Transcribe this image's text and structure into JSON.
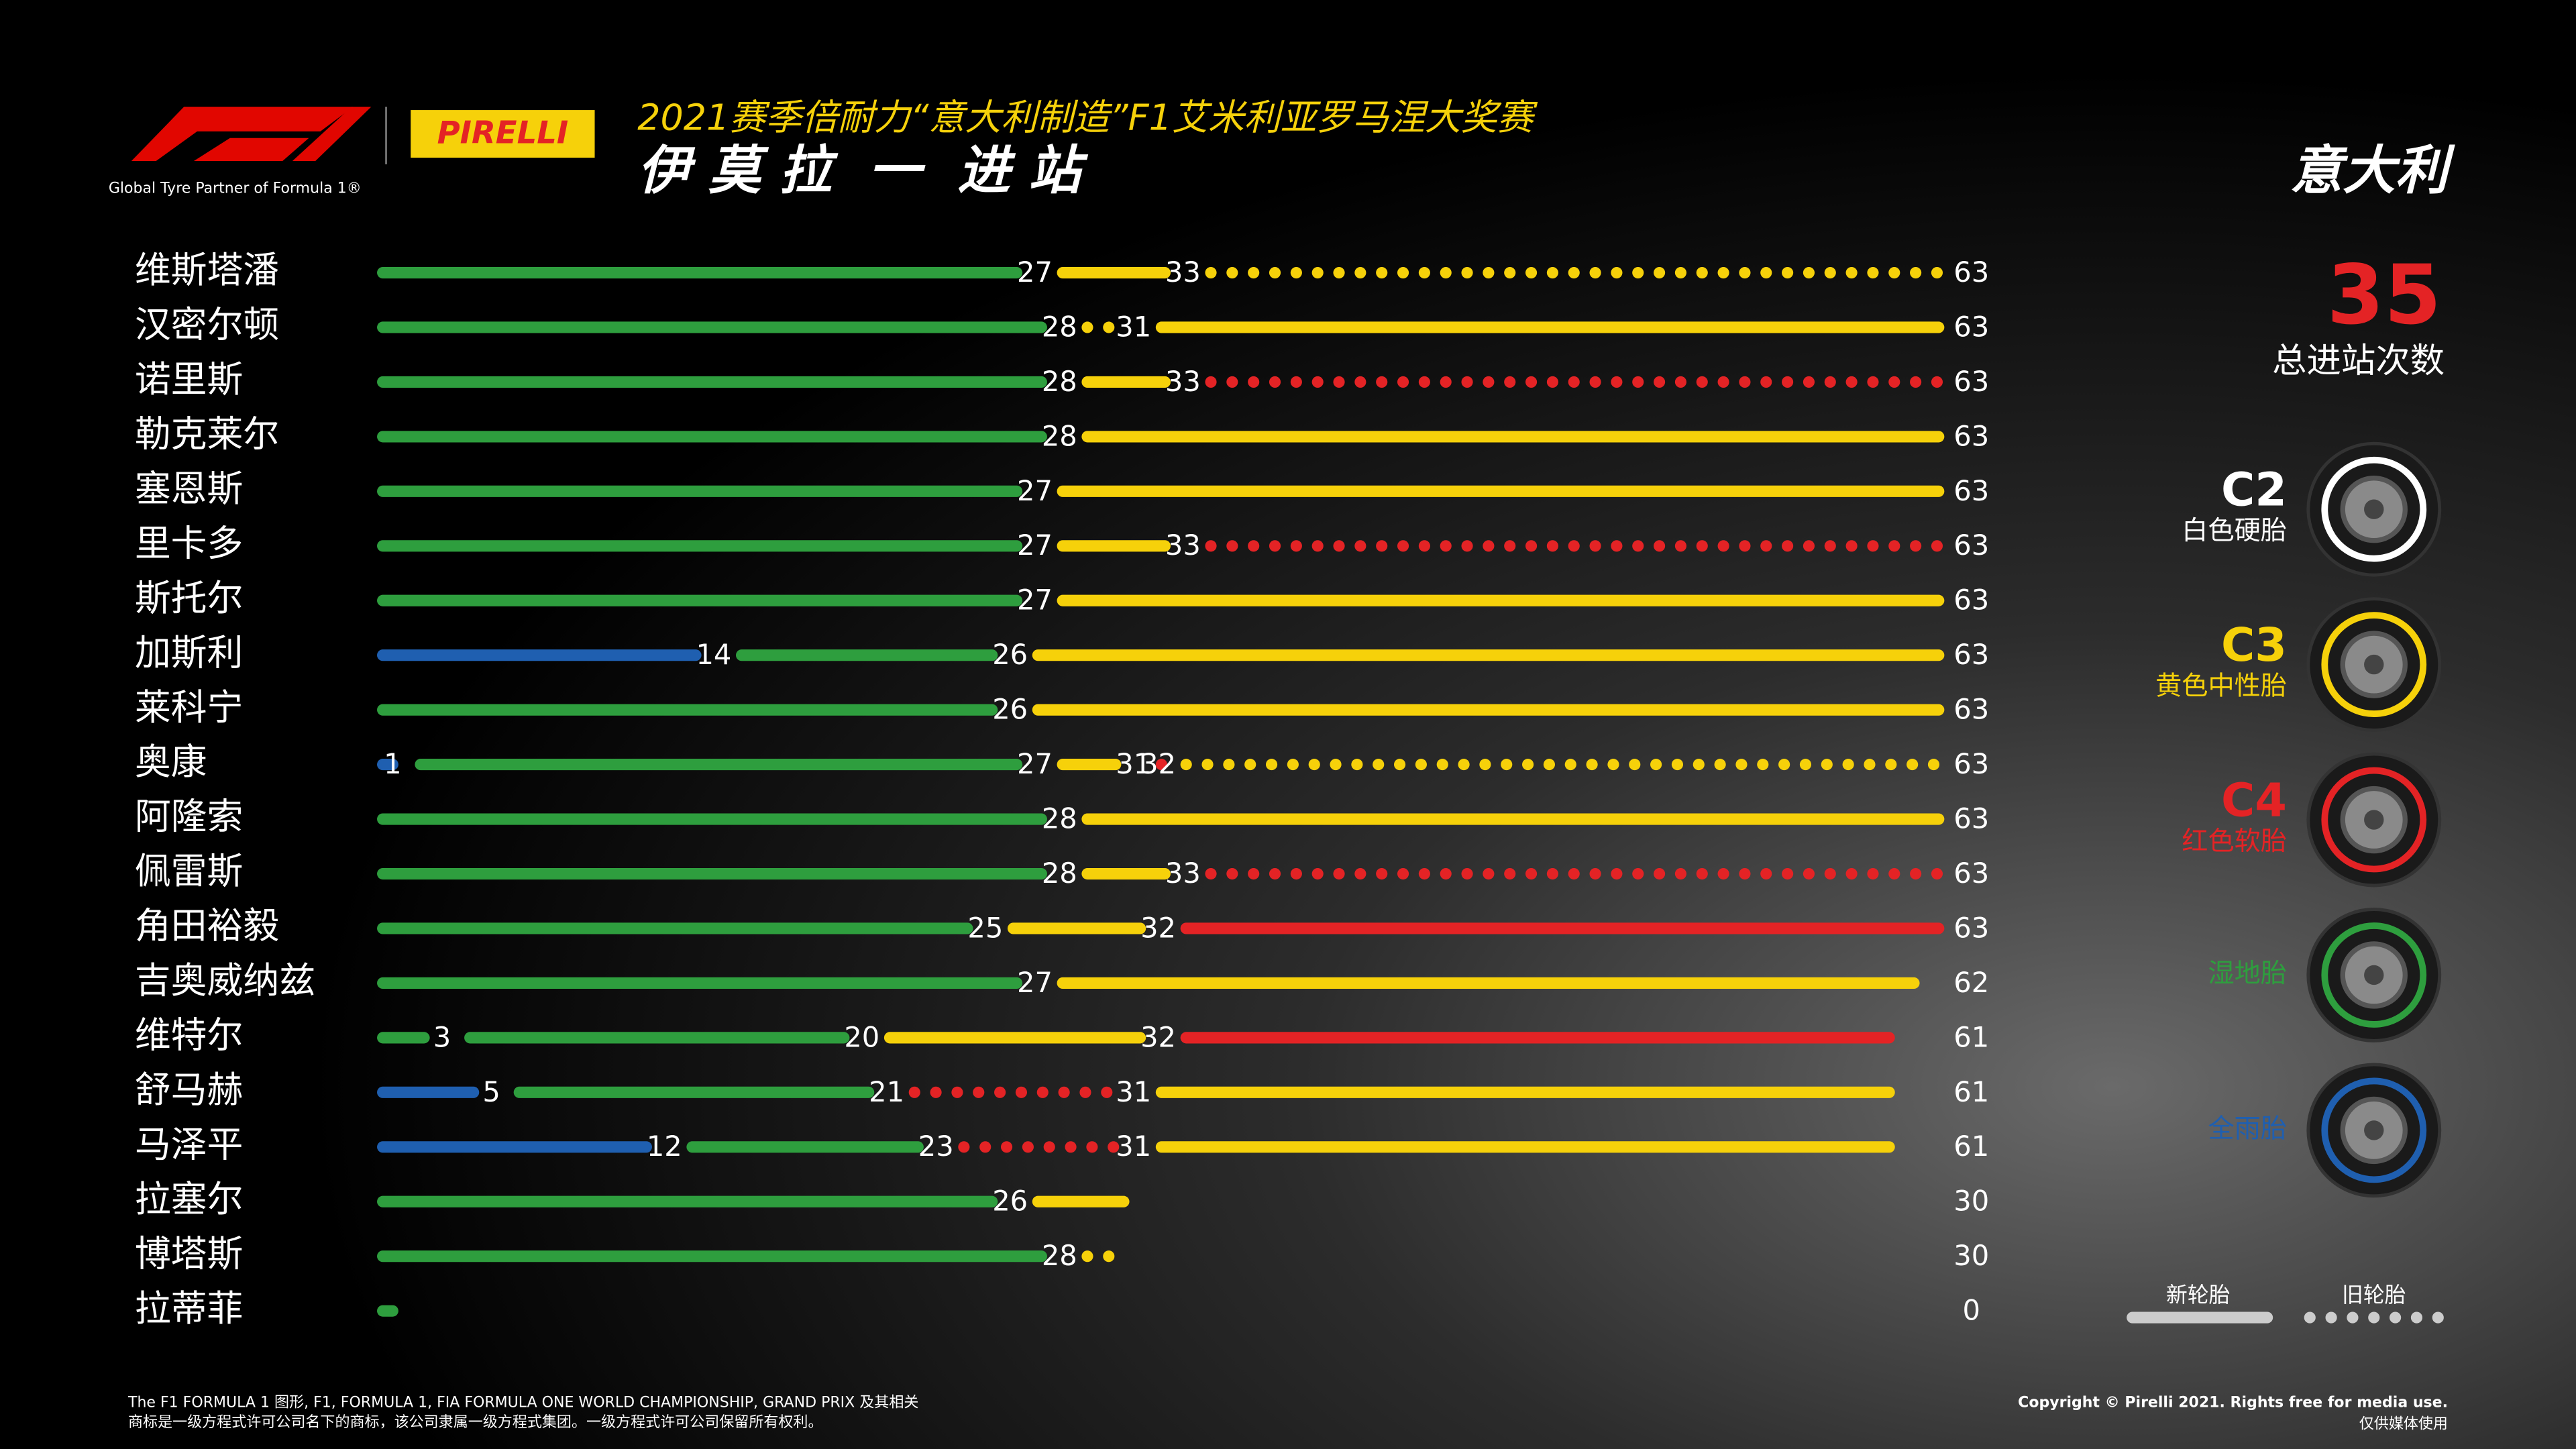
{
  "header": {
    "title": "2021赛季倍耐力“意大利制造”F1艾米利亚罗马涅大奖赛",
    "subtitle": "伊 莫 拉  一  进 站",
    "partner": "Global Tyre Partner of Formula 1®",
    "brand": "PIRELLI"
  },
  "chart_data": {
    "type": "strategy",
    "country": "意大利",
    "total_stops": 35,
    "total_stops_label": "总进站次数",
    "xlim": [
      0,
      63
    ],
    "compounds": [
      {
        "code": "C2",
        "name": "白色硬胎",
        "color": "#ffffff"
      },
      {
        "code": "C3",
        "name": "黄色中性胎",
        "color": "#f6d10a"
      },
      {
        "code": "C4",
        "name": "红色软胎",
        "color": "#e42325"
      },
      {
        "name": "湿地胎",
        "color": "#2e9e3e"
      },
      {
        "name": "全雨胎",
        "color": "#1f5fb0"
      }
    ],
    "legend_new": "新轮胎",
    "legend_used": "旧轮胎",
    "drivers": [
      {
        "name": "维斯塔潘",
        "stints": [
          {
            "compound": 3,
            "end": 27,
            "new": true
          },
          {
            "compound": 1,
            "end": 33,
            "new": true
          },
          {
            "compound": 1,
            "end": 63,
            "new": false
          }
        ]
      },
      {
        "name": "汉密尔顿",
        "stints": [
          {
            "compound": 3,
            "end": 28,
            "new": true
          },
          {
            "compound": 1,
            "end": 31,
            "new": false
          },
          {
            "compound": 1,
            "end": 63,
            "new": true
          }
        ]
      },
      {
        "name": "诺里斯",
        "stints": [
          {
            "compound": 3,
            "end": 28,
            "new": true
          },
          {
            "compound": 1,
            "end": 33,
            "new": true
          },
          {
            "compound": 2,
            "end": 63,
            "new": false
          }
        ]
      },
      {
        "name": "勒克莱尔",
        "stints": [
          {
            "compound": 3,
            "end": 28,
            "new": true
          },
          {
            "compound": 1,
            "end": 63,
            "new": true
          }
        ]
      },
      {
        "name": "塞恩斯",
        "stints": [
          {
            "compound": 3,
            "end": 27,
            "new": true
          },
          {
            "compound": 1,
            "end": 63,
            "new": true
          }
        ]
      },
      {
        "name": "里卡多",
        "stints": [
          {
            "compound": 3,
            "end": 27,
            "new": true
          },
          {
            "compound": 1,
            "end": 33,
            "new": true
          },
          {
            "compound": 2,
            "end": 63,
            "new": false
          }
        ]
      },
      {
        "name": "斯托尔",
        "stints": [
          {
            "compound": 3,
            "end": 27,
            "new": true
          },
          {
            "compound": 1,
            "end": 63,
            "new": true
          }
        ]
      },
      {
        "name": "加斯利",
        "stints": [
          {
            "compound": 4,
            "end": 14,
            "new": true
          },
          {
            "compound": 3,
            "end": 26,
            "new": true
          },
          {
            "compound": 1,
            "end": 63,
            "new": true
          }
        ]
      },
      {
        "name": "莱科宁",
        "stints": [
          {
            "compound": 3,
            "end": 26,
            "new": true
          },
          {
            "compound": 1,
            "end": 63,
            "new": true
          }
        ]
      },
      {
        "name": "奥康",
        "stints": [
          {
            "compound": 4,
            "end": 1,
            "new": true
          },
          {
            "compound": 3,
            "end": 27,
            "new": true
          },
          {
            "compound": 1,
            "end": 31,
            "new": true
          },
          {
            "compound": 2,
            "end": 32,
            "new": false
          },
          {
            "compound": 1,
            "end": 63,
            "new": false
          }
        ]
      },
      {
        "name": "阿隆索",
        "stints": [
          {
            "compound": 3,
            "end": 28,
            "new": true
          },
          {
            "compound": 1,
            "end": 63,
            "new": true
          }
        ]
      },
      {
        "name": "佩雷斯",
        "stints": [
          {
            "compound": 3,
            "end": 28,
            "new": true
          },
          {
            "compound": 1,
            "end": 33,
            "new": true
          },
          {
            "compound": 2,
            "end": 63,
            "new": false
          }
        ]
      },
      {
        "name": "角田裕毅",
        "stints": [
          {
            "compound": 3,
            "end": 25,
            "new": true
          },
          {
            "compound": 1,
            "end": 32,
            "new": true
          },
          {
            "compound": 2,
            "end": 63,
            "new": true
          }
        ]
      },
      {
        "name": "吉奥威纳兹",
        "stints": [
          {
            "compound": 3,
            "end": 27,
            "new": true
          },
          {
            "compound": 1,
            "end": 62,
            "new": true
          }
        ]
      },
      {
        "name": "维特尔",
        "stints": [
          {
            "compound": 3,
            "end": 3,
            "new": true
          },
          {
            "compound": 3,
            "end": 20,
            "new": true
          },
          {
            "compound": 1,
            "end": 32,
            "new": true
          },
          {
            "compound": 2,
            "end": 61,
            "new": true
          }
        ]
      },
      {
        "name": "舒马赫",
        "stints": [
          {
            "compound": 4,
            "end": 5,
            "new": true
          },
          {
            "compound": 3,
            "end": 21,
            "new": true
          },
          {
            "compound": 2,
            "end": 31,
            "new": false
          },
          {
            "compound": 1,
            "end": 61,
            "new": true
          }
        ]
      },
      {
        "name": "马泽平",
        "stints": [
          {
            "compound": 4,
            "end": 12,
            "new": true
          },
          {
            "compound": 3,
            "end": 23,
            "new": true
          },
          {
            "compound": 2,
            "end": 31,
            "new": false
          },
          {
            "compound": 1,
            "end": 61,
            "new": true
          }
        ]
      },
      {
        "name": "拉塞尔",
        "stints": [
          {
            "compound": 3,
            "end": 26,
            "new": true
          },
          {
            "compound": 1,
            "end": 30,
            "new": true
          }
        ]
      },
      {
        "name": "博塔斯",
        "stints": [
          {
            "compound": 3,
            "end": 28,
            "new": true
          },
          {
            "compound": 1,
            "end": 30,
            "new": false
          }
        ]
      },
      {
        "name": "拉蒂菲",
        "stints": [
          {
            "compound": 3,
            "end": 0,
            "new": true
          }
        ]
      }
    ]
  },
  "footer": {
    "legal": [
      "The F1 FORMULA 1 图形, F1, FORMULA 1, FIA FORMULA ONE WORLD CHAMPIONSHIP, GRAND PRIX 及其相关",
      "商标是一级方程式许可公司名下的商标，该公司隶属一级方程式集团。一级方程式许可公司保留所有权利。"
    ],
    "copyright": "Copyright © Pirelli 2021. Rights free for media use.",
    "media": "仅供媒体使用"
  }
}
